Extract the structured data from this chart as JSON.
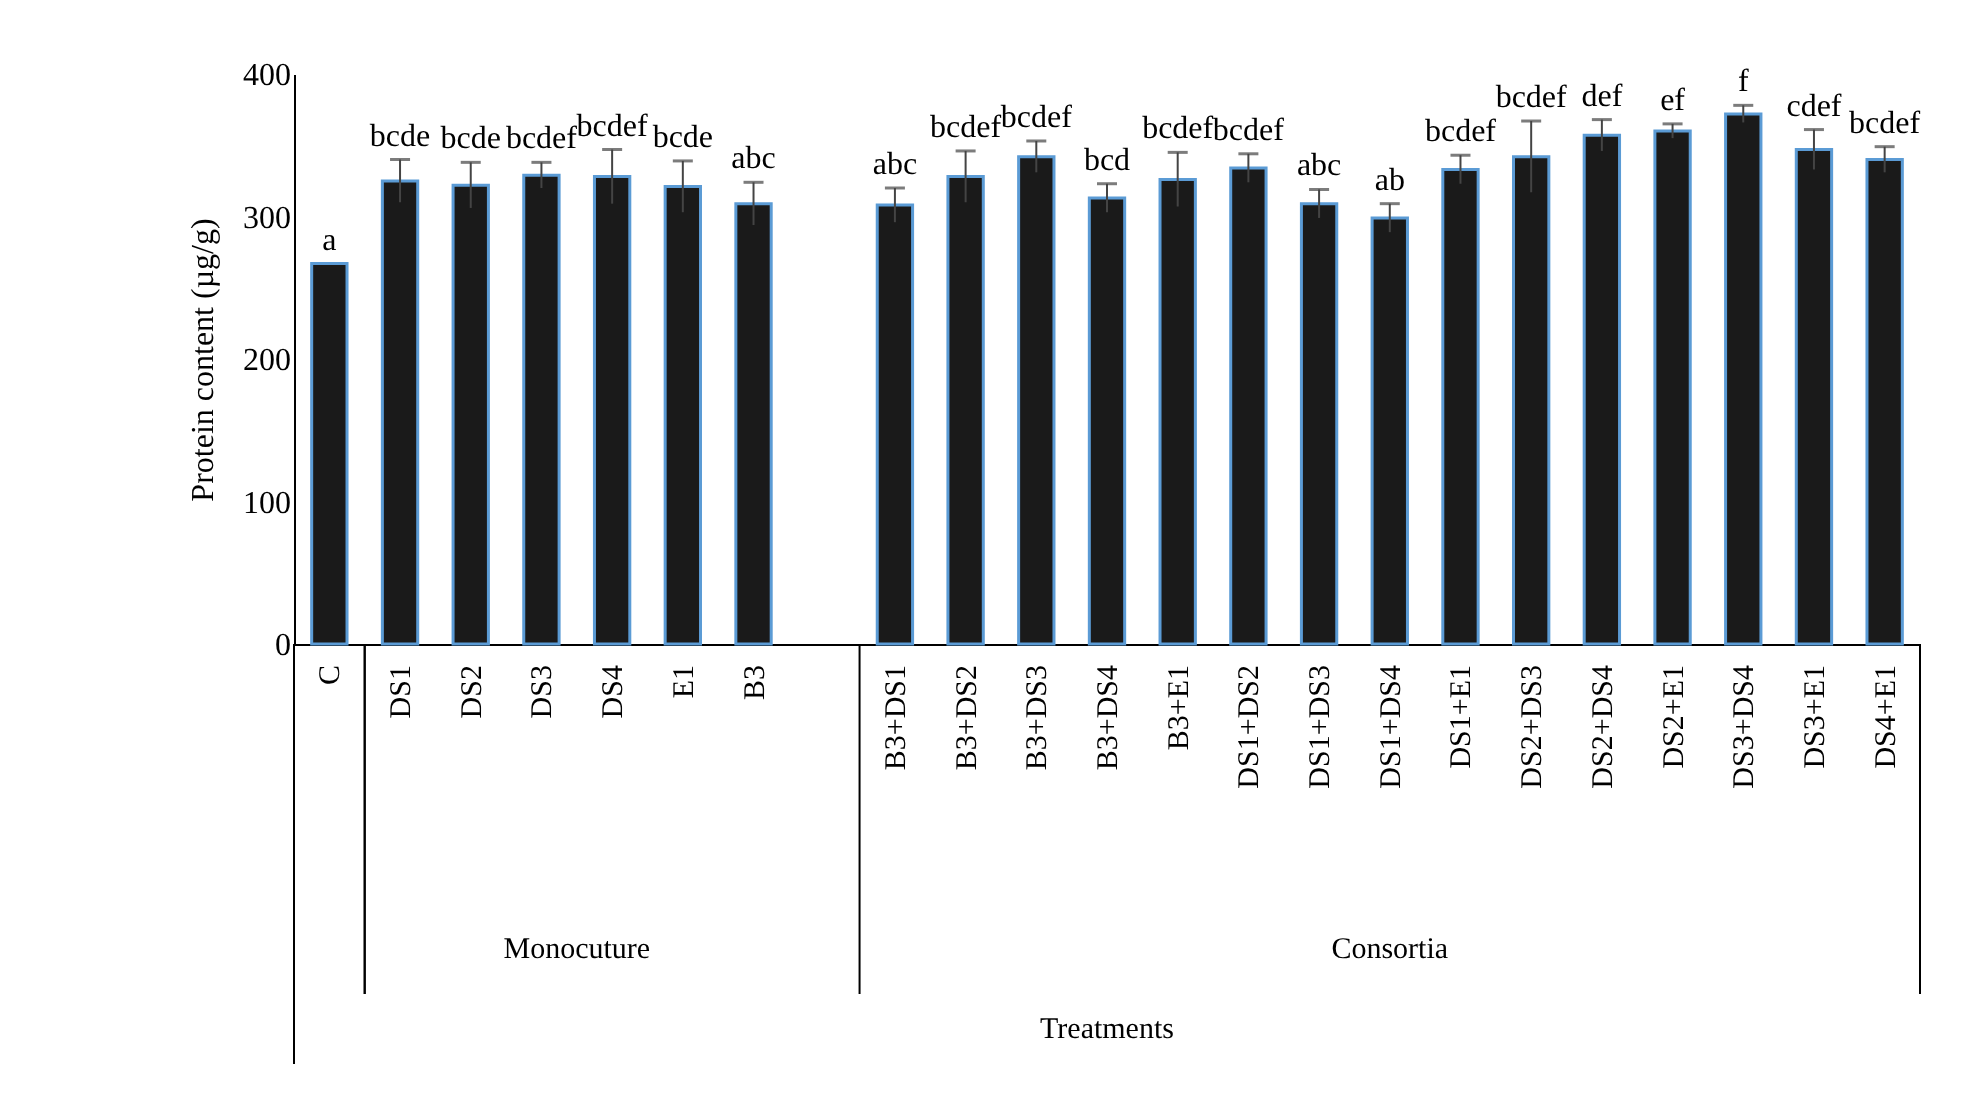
{
  "chart_data": {
    "type": "bar",
    "ylabel": "Protein content (µg/g)",
    "categories": [
      "C",
      "DS1",
      "DS2",
      "DS3",
      "DS4",
      "E1",
      "B3",
      null,
      "B3+DS1",
      "B3+DS2",
      "B3+DS3",
      "B3+DS4",
      "B3+E1",
      "DS1+DS2",
      "DS1+DS3",
      "DS1+DS4",
      "DS1+E1",
      "DS2+DS3",
      "DS2+DS4",
      "DS2+E1",
      "DS3+DS4",
      "DS3+E1",
      "DS4+E1"
    ],
    "values": [
      267,
      325,
      322,
      329,
      328,
      321,
      309,
      null,
      308,
      328,
      342,
      313,
      326,
      334,
      309,
      299,
      333,
      342,
      357,
      360,
      372,
      347,
      340
    ],
    "errors": [
      null,
      15,
      16,
      9,
      19,
      18,
      15,
      null,
      12,
      18,
      11,
      10,
      19,
      10,
      10,
      10,
      10,
      25,
      11,
      5,
      6,
      14,
      9
    ],
    "value_labels": [
      "a",
      "bcde",
      "bcde",
      "bcdef",
      "bcdef",
      "bcde",
      "abc",
      null,
      "abc",
      "bcdef",
      "bcdef",
      "bcd",
      "bcdef",
      "bcdef",
      "abc",
      "ab",
      "bcdef",
      "bcdef",
      "def",
      "ef",
      "f",
      "cdef",
      "bcdef"
    ],
    "color": "#1a1a1a",
    "ylim": [
      0,
      400
    ],
    "yticks": [
      0,
      100,
      200,
      300,
      400
    ],
    "grid": false,
    "annotations": [
      "Monocuture",
      "Consortia",
      "Treatments"
    ]
  }
}
